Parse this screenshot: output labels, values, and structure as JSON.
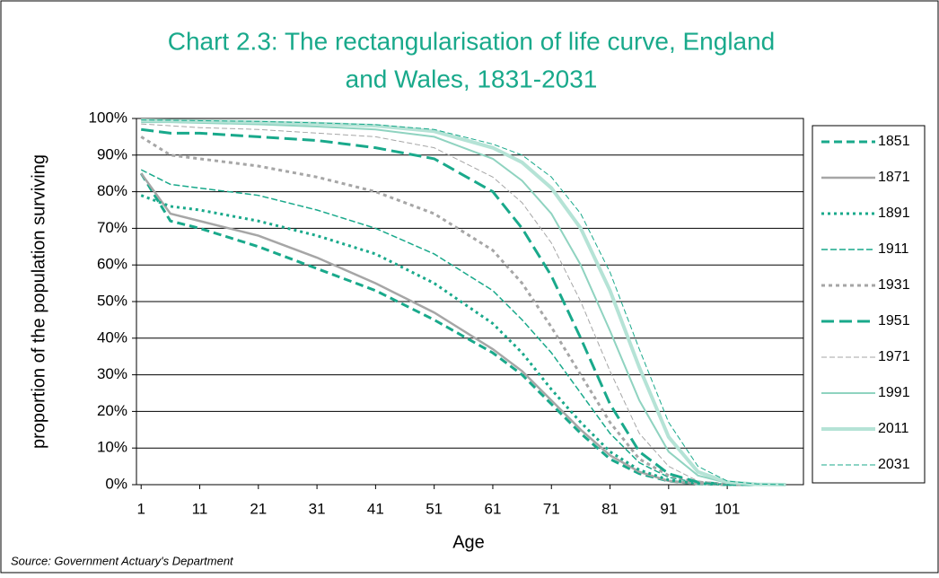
{
  "chart_data": {
    "type": "line",
    "title": "Chart 2.3: The rectangularisation of life curve, England",
    "title_line2": "and Wales, 1831-2031",
    "x_label": "Age",
    "y_label": "proportion of the population surviving",
    "source": "Source: Government Actuary's Department",
    "x": [
      1,
      6,
      11,
      21,
      31,
      41,
      51,
      61,
      66,
      71,
      76,
      81,
      86,
      91,
      96,
      101,
      106,
      111
    ],
    "xlim": [
      0.2,
      114
    ],
    "xticks": [
      1,
      11,
      21,
      31,
      41,
      51,
      61,
      71,
      81,
      91,
      101
    ],
    "ylim": [
      0,
      100
    ],
    "yticks": [
      {
        "value": 0,
        "label": "0%"
      },
      {
        "value": 10,
        "label": "10%"
      },
      {
        "value": 20,
        "label": "20%"
      },
      {
        "value": 30,
        "label": "30%"
      },
      {
        "value": 40,
        "label": "40%"
      },
      {
        "value": 50,
        "label": "50%"
      },
      {
        "value": 60,
        "label": "60%"
      },
      {
        "value": 70,
        "label": "70%"
      },
      {
        "value": 80,
        "label": "80%"
      },
      {
        "value": 90,
        "label": "90%"
      },
      {
        "value": 100,
        "label": "100%"
      }
    ],
    "grid": true,
    "legend": "right",
    "series": [
      {
        "name": "1851",
        "color": "#19a98b",
        "width": 3,
        "dash": "9 5",
        "values": [
          85,
          72,
          70,
          65,
          59,
          53,
          45,
          36,
          30,
          22,
          14,
          7,
          3,
          1,
          0.2,
          0,
          0,
          0
        ]
      },
      {
        "name": "1871",
        "color": "#a6a6a6",
        "width": 2.5,
        "dash": "",
        "values": [
          85,
          74,
          72,
          68,
          62,
          55,
          47,
          37,
          31,
          23,
          15,
          8,
          3.5,
          1,
          0.2,
          0,
          0,
          0
        ]
      },
      {
        "name": "1891",
        "color": "#19a98b",
        "width": 3,
        "dash": "3 4",
        "values": [
          79,
          76,
          75,
          72,
          68,
          63,
          55,
          44,
          36,
          26,
          17,
          9,
          4,
          1.3,
          0.3,
          0,
          0,
          0
        ]
      },
      {
        "name": "1911",
        "color": "#19a98b",
        "width": 1.5,
        "dash": "7 3",
        "values": [
          86,
          82,
          81,
          79,
          75,
          70,
          63,
          53,
          45,
          36,
          25,
          14,
          6,
          2,
          0.5,
          0.1,
          0,
          0
        ]
      },
      {
        "name": "1931",
        "color": "#a6a6a6",
        "width": 3,
        "dash": "4 4",
        "values": [
          95,
          90,
          89,
          87,
          84,
          80,
          74,
          64,
          55,
          43,
          30,
          17,
          7,
          2.5,
          0.6,
          0.1,
          0,
          0
        ]
      },
      {
        "name": "1951",
        "color": "#19a98b",
        "width": 3,
        "dash": "14 6",
        "values": [
          97,
          96,
          96,
          95,
          94,
          92,
          89,
          80,
          70,
          57,
          40,
          22,
          9,
          3,
          0.7,
          0.1,
          0,
          0
        ]
      },
      {
        "name": "1971",
        "color": "#a6a6a6",
        "width": 1,
        "dash": "6 3",
        "values": [
          98.5,
          98,
          97.5,
          97,
          96,
          95,
          92,
          84,
          77,
          66,
          50,
          31,
          14,
          5,
          1,
          0.2,
          0,
          0
        ]
      },
      {
        "name": "1991",
        "color": "#8fd3c0",
        "width": 2,
        "dash": "",
        "values": [
          99,
          99,
          98.8,
          98.4,
          97.8,
          97,
          95,
          89,
          83,
          74,
          60,
          42,
          23,
          9,
          2.5,
          0.5,
          0.1,
          0
        ]
      },
      {
        "name": "2011",
        "color": "#b5e3d6",
        "width": 4,
        "dash": "",
        "values": [
          99.5,
          99.4,
          99.3,
          99,
          98.6,
          98,
          96.5,
          92,
          88,
          81,
          70,
          53,
          32,
          13,
          3.5,
          0.7,
          0.1,
          0
        ]
      },
      {
        "name": "2031",
        "color": "#19a98b",
        "width": 1,
        "dash": "6 3",
        "values": [
          99.6,
          99.5,
          99.4,
          99.2,
          98.8,
          98.3,
          97,
          93,
          90,
          84,
          74,
          58,
          37,
          17,
          5,
          1,
          0.2,
          0
        ]
      }
    ]
  }
}
